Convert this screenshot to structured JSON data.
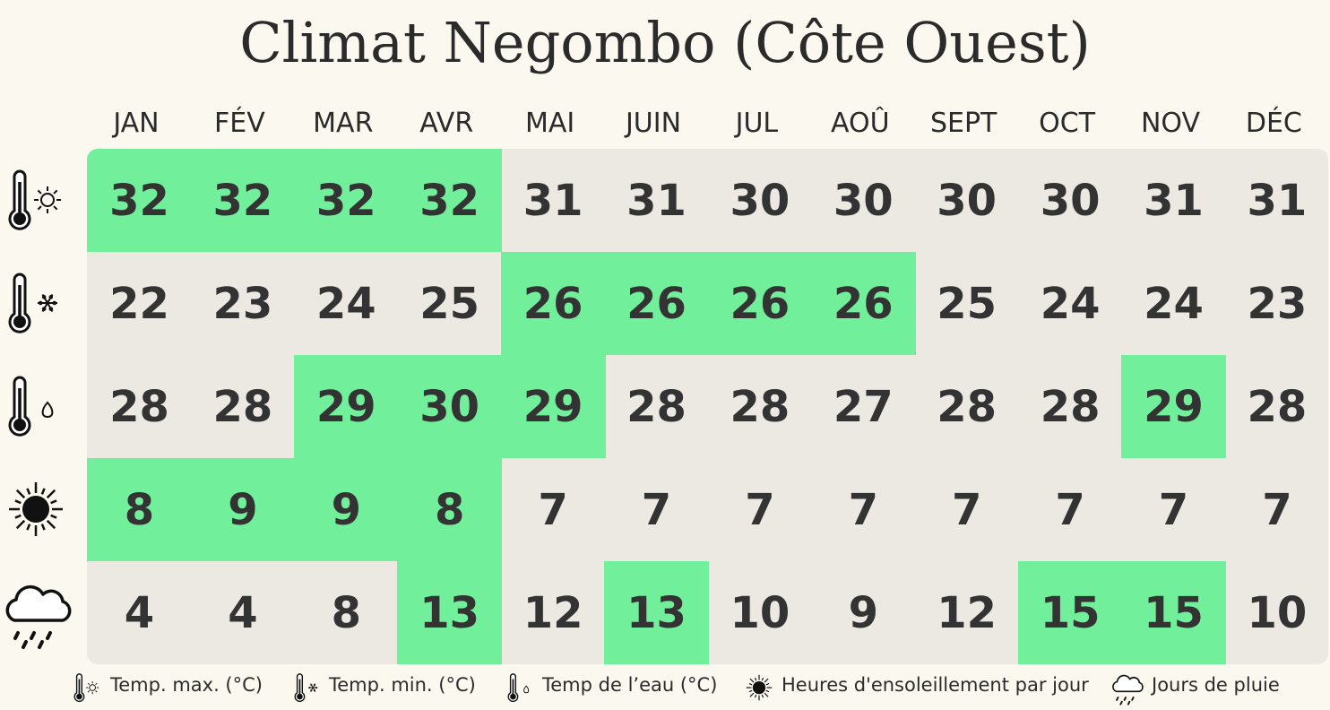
{
  "title": "Climat Negombo (Côte Ouest)",
  "colors": {
    "highlight": "#72ef9a",
    "cell_background": "#ebe9e2",
    "page_background": "#fbf8ef",
    "text": "#333333"
  },
  "chart_data": {
    "type": "table",
    "title": "Climat Negombo (Côte Ouest)",
    "categories": [
      "JAN",
      "FÉV",
      "MAR",
      "AVR",
      "MAI",
      "JUIN",
      "JUL",
      "AOÛ",
      "SEPT",
      "OCT",
      "NOV",
      "DÉC"
    ],
    "series": [
      {
        "name": "Temp. max. (°C)",
        "icon": "thermometer-sun-icon",
        "values": [
          32,
          32,
          32,
          32,
          31,
          31,
          30,
          30,
          30,
          30,
          31,
          31
        ],
        "highlighted": [
          true,
          true,
          true,
          true,
          false,
          false,
          false,
          false,
          false,
          false,
          false,
          false
        ]
      },
      {
        "name": "Temp. min. (°C)",
        "icon": "thermometer-snowflake-icon",
        "values": [
          22,
          23,
          24,
          25,
          26,
          26,
          26,
          26,
          25,
          24,
          24,
          23
        ],
        "highlighted": [
          false,
          false,
          false,
          false,
          true,
          true,
          true,
          true,
          false,
          false,
          false,
          false
        ]
      },
      {
        "name": "Temp de l’eau (°C)",
        "icon": "thermometer-drop-icon",
        "values": [
          28,
          28,
          29,
          30,
          29,
          28,
          28,
          27,
          28,
          28,
          29,
          28
        ],
        "highlighted": [
          false,
          false,
          true,
          true,
          true,
          false,
          false,
          false,
          false,
          false,
          true,
          false
        ]
      },
      {
        "name": "Heures d'ensoleillement par jour",
        "icon": "sun-icon",
        "values": [
          8,
          9,
          9,
          8,
          7,
          7,
          7,
          7,
          7,
          7,
          7,
          7
        ],
        "highlighted": [
          true,
          true,
          true,
          true,
          false,
          false,
          false,
          false,
          false,
          false,
          false,
          false
        ]
      },
      {
        "name": "Jours de pluie",
        "icon": "rain-cloud-icon",
        "values": [
          4,
          4,
          8,
          13,
          12,
          13,
          10,
          9,
          12,
          15,
          15,
          10
        ],
        "highlighted": [
          false,
          false,
          false,
          true,
          false,
          true,
          false,
          false,
          false,
          true,
          true,
          false
        ]
      }
    ]
  },
  "legend": [
    {
      "label": "Temp. max. (°C)",
      "icon": "thermometer-sun-icon"
    },
    {
      "label": "Temp. min. (°C)",
      "icon": "thermometer-snowflake-icon"
    },
    {
      "label": "Temp de l’eau (°C)",
      "icon": "thermometer-drop-icon"
    },
    {
      "label": "Heures d'ensoleillement par jour",
      "icon": "sun-icon"
    },
    {
      "label": "Jours de pluie",
      "icon": "rain-cloud-icon"
    }
  ]
}
